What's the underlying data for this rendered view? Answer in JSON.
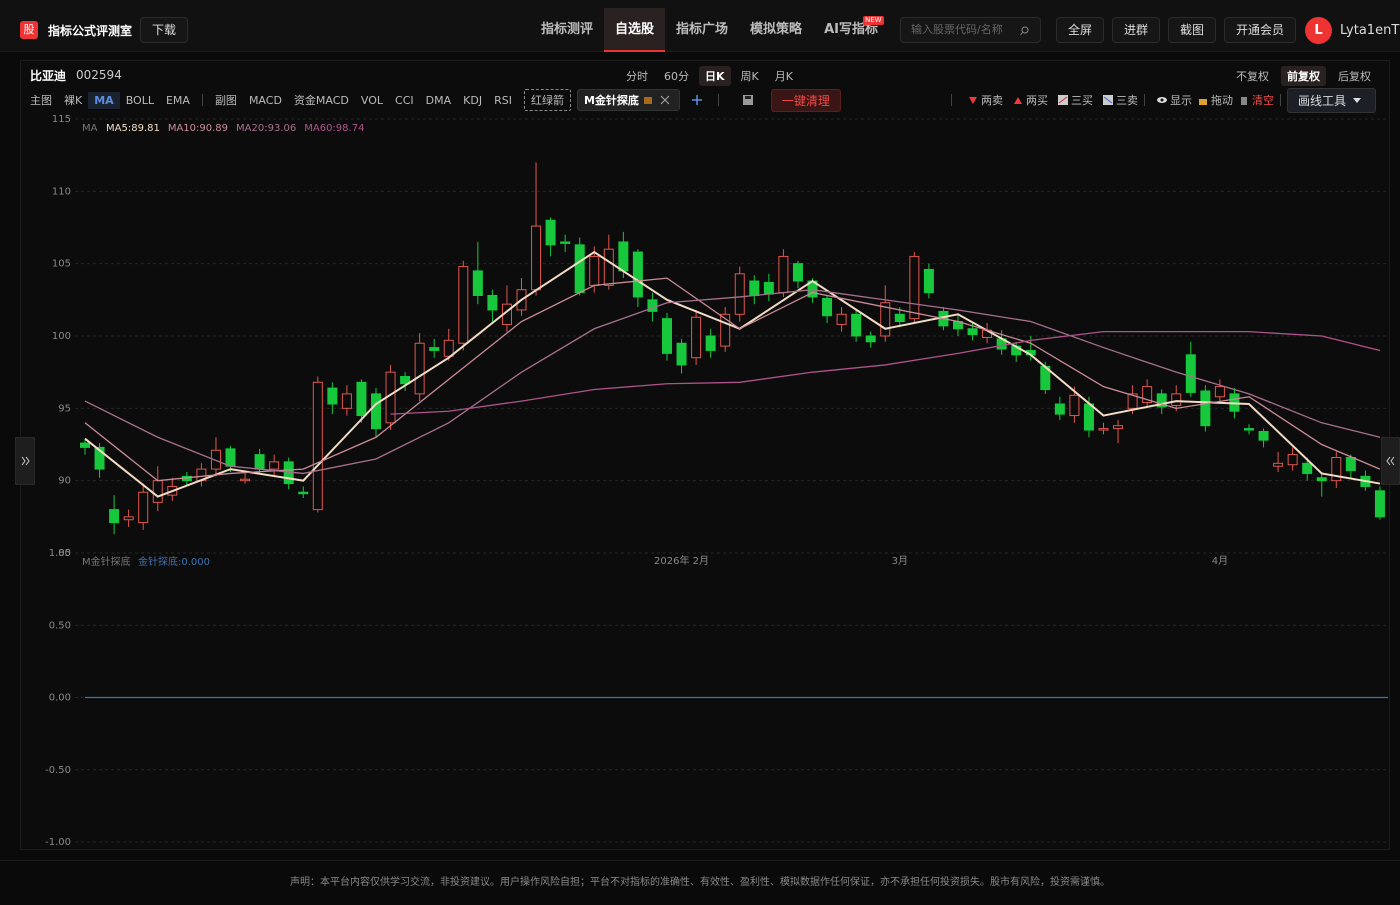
{
  "header": {
    "logo": "股",
    "site_name": "指标公式评测室",
    "download": "下载",
    "nav": [
      "指标测评",
      "自选股",
      "指标广场",
      "模拟策略",
      "AI写指标"
    ],
    "new_badge": "NEW",
    "search_placeholder": "输入股票代码/名称",
    "buttons": [
      "全屏",
      "进群",
      "截图",
      "开通会员"
    ],
    "avatar": "L",
    "username": "Lyta1enT"
  },
  "stock": {
    "name": "比亚迪",
    "code": "002594"
  },
  "periods": [
    "分时",
    "60分",
    "日K",
    "周K",
    "月K"
  ],
  "adjust": [
    "不复权",
    "前复权",
    "后复权"
  ],
  "toolbar": {
    "main_label": "主图",
    "main_items": [
      "裸K",
      "MA",
      "BOLL",
      "EMA"
    ],
    "sub_label": "副图",
    "sub_items": [
      "MACD",
      "资金MACD",
      "VOL",
      "CCI",
      "DMA",
      "KDJ",
      "RSI"
    ],
    "custom": "红绿箭",
    "active_indicator": "M金针探底",
    "clear": "一键清理",
    "signals": [
      "两卖",
      "两买",
      "三买",
      "三卖"
    ],
    "view": [
      "显示",
      "拖动",
      "清空"
    ],
    "draw_tools": "画线工具"
  },
  "chart_data": [
    {
      "type": "candlestick",
      "indicator_label": "MA",
      "up_color": "#e0574f",
      "down_color": "#17c83d",
      "grid": true,
      "open": [
        92.6,
        92.3,
        88.0,
        87.3,
        87.1,
        88.5,
        89.0,
        90.3,
        90.0,
        90.8,
        92.2,
        90.0,
        91.8,
        90.8,
        91.3,
        89.2,
        88.0,
        96.4,
        95.0,
        96.8,
        96.0,
        94.0,
        97.2,
        96.0,
        99.2,
        98.6,
        99.5,
        104.5,
        102.8,
        100.8,
        101.8,
        103.2,
        108.0,
        106.5,
        106.3,
        103.5,
        103.5,
        106.5,
        105.8,
        102.5,
        101.2,
        99.5,
        98.5,
        100.0,
        99.3,
        101.5,
        103.8,
        103.7,
        103.0,
        105.0,
        103.8,
        102.6,
        100.8,
        101.5,
        100.0,
        100.0,
        101.5,
        101.2,
        104.6,
        101.7,
        101.0,
        100.5,
        99.9,
        99.8,
        99.3,
        99.0,
        97.9,
        95.3,
        94.5,
        95.3,
        93.5,
        93.6,
        95.0,
        95.4,
        96.0,
        95.2,
        98.7,
        96.2,
        95.8,
        96.0,
        93.6,
        93.4,
        91.0,
        91.1,
        91.2,
        90.2,
        90.0,
        91.6,
        90.3,
        89.3
      ],
      "high": [
        92.9,
        92.6,
        89.0,
        88.0,
        89.8,
        91.0,
        90.2,
        90.6,
        91.2,
        93.0,
        92.4,
        90.6,
        92.2,
        91.8,
        91.6,
        89.6,
        97.2,
        96.8,
        96.6,
        97.0,
        96.4,
        98.0,
        97.5,
        100.2,
        99.8,
        100.5,
        105.2,
        106.5,
        103.2,
        103.5,
        104.0,
        112.0,
        108.2,
        107.0,
        106.8,
        106.2,
        107.0,
        107.2,
        106.0,
        103.0,
        101.6,
        99.8,
        101.8,
        100.5,
        102.0,
        104.8,
        104.2,
        104.3,
        106.0,
        105.2,
        104.0,
        102.8,
        102.0,
        101.8,
        100.3,
        103.5,
        102.0,
        105.8,
        105.0,
        102.0,
        101.5,
        101.0,
        100.9,
        100.4,
        99.6,
        100.0,
        98.2,
        95.8,
        96.5,
        95.8,
        94.0,
        94.2,
        96.6,
        97.0,
        96.3,
        96.6,
        99.6,
        96.6,
        97.0,
        96.4,
        93.9,
        93.6,
        92.0,
        92.3,
        91.6,
        90.6,
        92.0,
        91.8,
        90.7,
        89.6
      ],
      "low": [
        91.8,
        90.2,
        86.3,
        86.8,
        86.6,
        87.9,
        88.6,
        89.7,
        89.6,
        90.3,
        90.6,
        89.8,
        90.5,
        90.3,
        89.4,
        88.8,
        87.8,
        94.6,
        94.5,
        94.0,
        93.0,
        93.5,
        96.2,
        95.5,
        98.5,
        98.3,
        99.0,
        102.2,
        101.0,
        100.3,
        101.4,
        102.8,
        105.5,
        105.8,
        102.8,
        103.0,
        103.2,
        104.0,
        102.0,
        101.0,
        98.3,
        97.4,
        98.0,
        98.5,
        98.9,
        101.0,
        102.2,
        102.4,
        102.7,
        103.3,
        102.3,
        100.9,
        100.3,
        99.6,
        99.2,
        99.6,
        100.6,
        100.9,
        102.6,
        100.4,
        100.0,
        99.7,
        99.5,
        98.7,
        98.2,
        98.3,
        96.0,
        94.2,
        94.0,
        93.0,
        93.2,
        92.6,
        94.6,
        95.0,
        94.6,
        94.8,
        95.8,
        93.4,
        95.4,
        94.3,
        93.2,
        92.3,
        90.6,
        90.7,
        90.0,
        88.9,
        89.5,
        90.2,
        89.3,
        87.3
      ],
      "close": [
        92.3,
        90.8,
        87.1,
        87.5,
        89.2,
        90.0,
        89.6,
        90.0,
        90.8,
        92.1,
        91.0,
        90.1,
        90.8,
        91.3,
        89.8,
        89.1,
        96.8,
        95.3,
        96.0,
        94.5,
        93.6,
        97.5,
        96.7,
        99.5,
        99.0,
        99.7,
        104.8,
        102.8,
        101.8,
        102.2,
        103.2,
        107.6,
        106.3,
        106.4,
        103.0,
        105.5,
        106.0,
        104.5,
        102.7,
        101.7,
        98.8,
        98.0,
        101.3,
        99.0,
        101.5,
        104.3,
        102.8,
        102.9,
        105.5,
        103.8,
        102.7,
        101.4,
        101.5,
        100.0,
        99.6,
        102.3,
        101.0,
        105.5,
        103.0,
        100.7,
        100.5,
        100.1,
        100.4,
        99.1,
        98.7,
        98.7,
        96.3,
        94.6,
        95.9,
        93.5,
        93.6,
        93.8,
        96.0,
        96.5,
        95.1,
        96.0,
        96.1,
        93.8,
        96.5,
        94.8,
        93.5,
        92.8,
        91.2,
        91.8,
        90.5,
        90.0,
        91.6,
        90.7,
        89.6,
        87.5
      ],
      "series": [
        {
          "name": "MA5:89.81",
          "color": "#f2dcc4",
          "x": [
            0,
            5,
            10,
            15,
            20,
            25,
            30,
            35,
            40,
            45,
            50,
            55,
            60,
            65,
            70,
            75,
            80,
            85,
            89
          ],
          "values": [
            92.9,
            88.9,
            90.8,
            90.0,
            95.3,
            98.5,
            102.5,
            105.8,
            102.5,
            100.5,
            103.8,
            100.5,
            101.5,
            98.7,
            94.5,
            95.5,
            95.3,
            90.5,
            89.8
          ]
        },
        {
          "name": "MA10:90.89",
          "color": "#c98c98",
          "x": [
            0,
            5,
            10,
            15,
            20,
            25,
            30,
            35,
            40,
            45,
            50,
            55,
            60,
            65,
            70,
            75,
            80,
            85,
            89
          ],
          "values": [
            94.0,
            90.0,
            90.5,
            90.8,
            93.0,
            97.0,
            101.0,
            103.5,
            104.0,
            100.5,
            103.0,
            102.0,
            101.0,
            99.5,
            96.5,
            95.0,
            95.8,
            92.5,
            90.8
          ]
        },
        {
          "name": "MA20:93.06",
          "color": "#a8708e",
          "x": [
            0,
            5,
            10,
            15,
            20,
            25,
            30,
            35,
            40,
            45,
            50,
            55,
            60,
            65,
            70,
            75,
            80,
            85,
            89
          ],
          "values": [
            95.5,
            93.0,
            91.0,
            90.5,
            91.5,
            94.0,
            97.5,
            100.5,
            102.3,
            102.7,
            103.2,
            102.5,
            101.8,
            101.0,
            99.2,
            97.5,
            96.0,
            94.0,
            93.0
          ]
        },
        {
          "name": "MA60:98.74",
          "color": "#b0538c",
          "x": [
            21,
            25,
            30,
            35,
            40,
            45,
            50,
            55,
            60,
            65,
            70,
            75,
            80,
            85,
            89
          ],
          "values": [
            94.6,
            94.8,
            95.5,
            96.3,
            96.7,
            96.8,
            97.5,
            98.0,
            98.8,
            99.7,
            100.3,
            100.3,
            100.3,
            100.0,
            99.0
          ]
        }
      ],
      "ylim": [
        85,
        115
      ],
      "yticks": [
        85,
        90,
        95,
        100,
        105,
        110,
        115
      ],
      "xticks": [
        {
          "value": 41,
          "label": "2026年  2月"
        },
        {
          "value": 56,
          "label": "3月"
        },
        {
          "value": 78,
          "label": "4月"
        }
      ]
    },
    {
      "type": "line",
      "title": "M金针探底",
      "grid": true,
      "series": [
        {
          "name": "金针探底:0.000",
          "color": "#3d72b0",
          "x": [
            0,
            89
          ],
          "values": [
            0,
            0
          ]
        }
      ],
      "ylim": [
        -1,
        1
      ],
      "yticks": [
        {
          "value": -1,
          "label": "-1.00"
        },
        {
          "value": -0.5,
          "label": "-0.50"
        },
        {
          "value": 0,
          "label": "0.00"
        },
        {
          "value": 0.5,
          "label": "0.50"
        },
        {
          "value": 1,
          "label": "1.00"
        }
      ]
    }
  ],
  "footer": "声明：本平台内容仅供学习交流，非投资建议。用户操作风险自担；平台不对指标的准确性、有效性、盈利性、模拟数据作任何保证，亦不承担任何投资损失。股市有风险，投资需谨慎。"
}
